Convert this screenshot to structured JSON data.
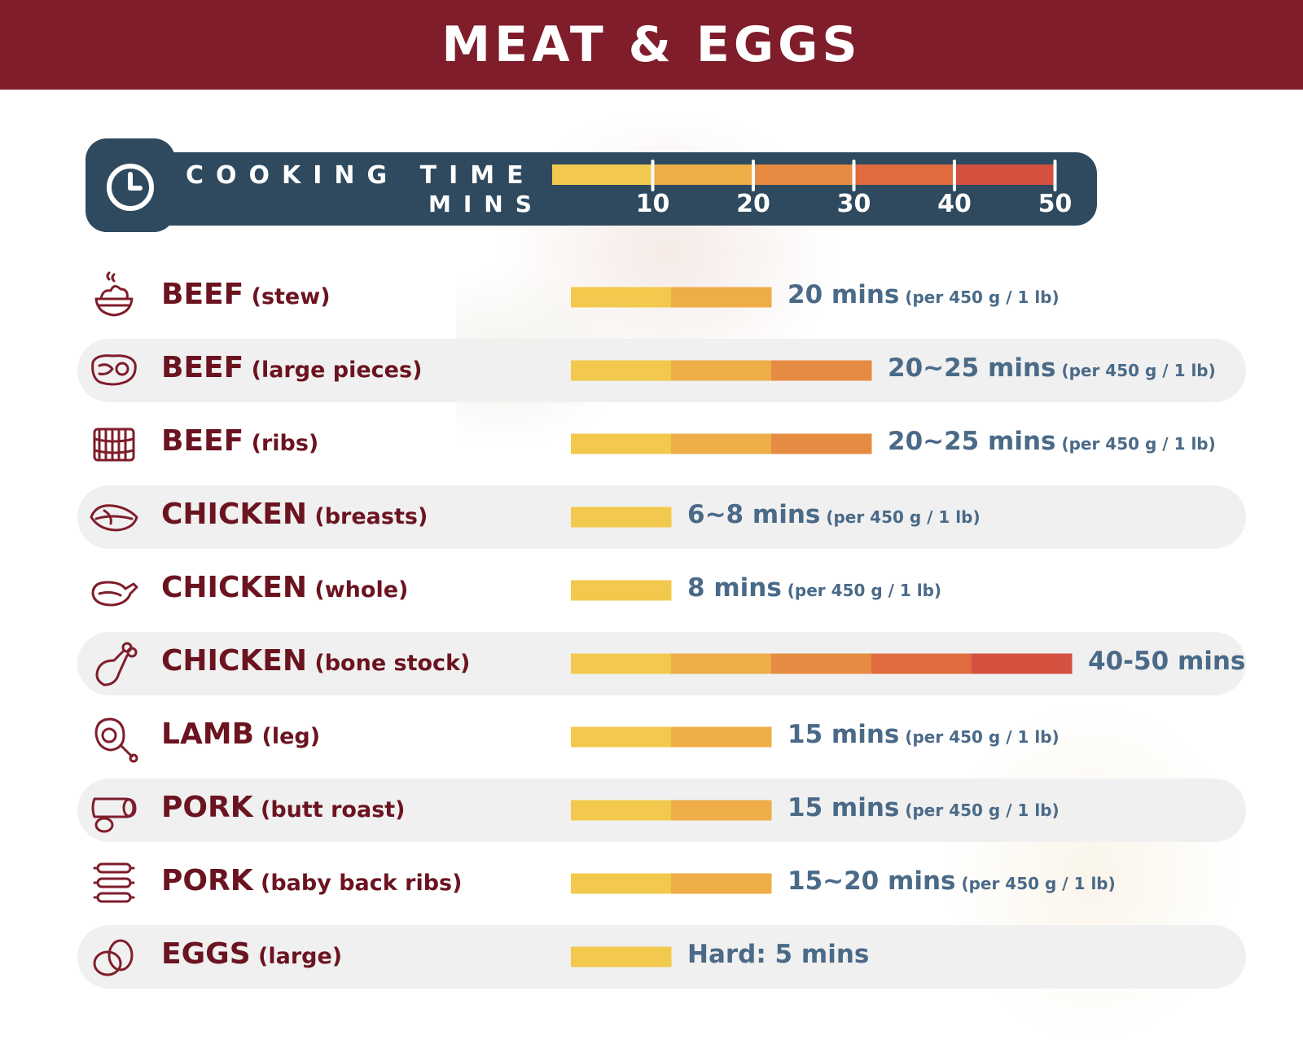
{
  "header": {
    "title": "MEAT & EGGS"
  },
  "legend": {
    "title": "COOKING TIME",
    "unit": "MINS"
  },
  "colors": {
    "header_bg": "#7f1d2b",
    "legend_bg": "#2f4a5e",
    "label": "#6b1420",
    "value_text": "#4a6a88",
    "segments": [
      "#f2c94c",
      "#eead47",
      "#e68c42",
      "#e06b3f",
      "#d4503f"
    ]
  },
  "chart_data": {
    "type": "bar",
    "orientation": "horizontal",
    "title": "MEAT & EGGS",
    "xlabel": "MINS",
    "xlim": [
      0,
      50
    ],
    "xticks": [
      "10",
      "20",
      "30",
      "40",
      "50"
    ],
    "segment_size": 10,
    "categories": [
      {
        "name": "BEEF",
        "detail": "(stew)",
        "value": 20,
        "time_text": "20 mins",
        "per_text": "(per 450 g / 1 lb)",
        "icon": "stew-bowl-icon"
      },
      {
        "name": "BEEF",
        "detail": "(large pieces)",
        "value": 30,
        "time_text": "20~25 mins",
        "per_text": "(per 450 g / 1 lb)",
        "icon": "steak-icon"
      },
      {
        "name": "BEEF",
        "detail": "(ribs)",
        "value": 30,
        "time_text": "20~25 mins",
        "per_text": "(per 450 g / 1 lb)",
        "icon": "ribs-icon"
      },
      {
        "name": "CHICKEN",
        "detail": "(breasts)",
        "value": 10,
        "time_text": "6~8 mins",
        "per_text": "(per 450 g / 1 lb)",
        "icon": "chicken-breast-icon"
      },
      {
        "name": "CHICKEN",
        "detail": "(whole)",
        "value": 10,
        "time_text": "8 mins",
        "per_text": "(per 450 g / 1 lb)",
        "icon": "whole-chicken-icon"
      },
      {
        "name": "CHICKEN",
        "detail": "(bone stock)",
        "value": 50,
        "time_text": "40-50 mins",
        "per_text": "",
        "icon": "drumstick-icon"
      },
      {
        "name": "LAMB",
        "detail": "(leg)",
        "value": 20,
        "time_text": "15 mins",
        "per_text": "(per 450 g / 1 lb)",
        "icon": "lamb-leg-icon"
      },
      {
        "name": "PORK",
        "detail": "(butt roast)",
        "value": 20,
        "time_text": "15 mins",
        "per_text": "(per 450 g / 1 lb)",
        "icon": "sausage-icon"
      },
      {
        "name": "PORK",
        "detail": "(baby back ribs)",
        "value": 20,
        "time_text": "15~20 mins",
        "per_text": "(per 450 g / 1 lb)",
        "icon": "pork-ribs-icon"
      },
      {
        "name": "EGGS",
        "detail": "(large)",
        "value": 10,
        "time_text": "Hard: 5 mins",
        "per_text": "",
        "icon": "eggs-icon"
      }
    ]
  }
}
